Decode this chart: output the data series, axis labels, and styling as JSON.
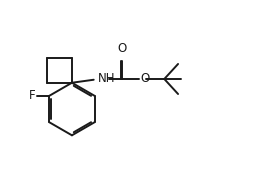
{
  "bg_color": "#ffffff",
  "line_color": "#1a1a1a",
  "line_width": 1.4,
  "font_size": 8.5,
  "figsize": [
    2.54,
    1.78
  ],
  "dpi": 100,
  "xlim": [
    0,
    10
  ],
  "ylim": [
    0,
    7
  ]
}
